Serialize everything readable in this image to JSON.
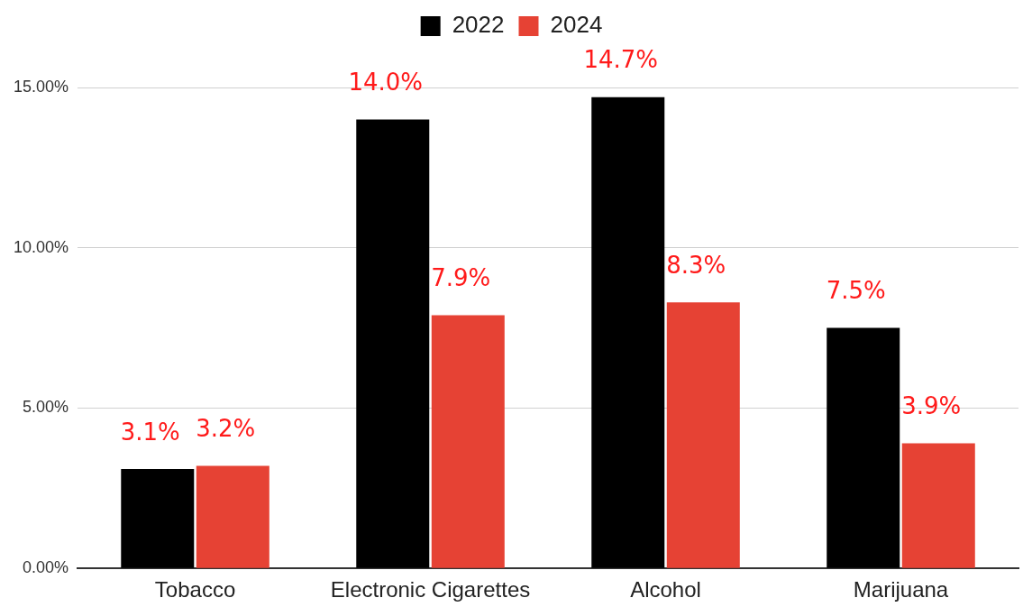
{
  "chart_data": {
    "type": "bar",
    "categories": [
      "Tobacco",
      "Electronic Cigarettes",
      "Alcohol",
      "Marijuana"
    ],
    "series": [
      {
        "name": "2022",
        "color": "#000000",
        "values": [
          3.1,
          14.0,
          14.7,
          7.5
        ],
        "value_labels": [
          "3.1%",
          "14.0%",
          "14.7%",
          "7.5%"
        ]
      },
      {
        "name": "2024",
        "color": "#e64234",
        "values": [
          3.2,
          7.9,
          8.3,
          3.9
        ],
        "value_labels": [
          "3.2%",
          "7.9%",
          "8.3%",
          "3.9%"
        ]
      }
    ],
    "ylim": [
      0,
      15
    ],
    "yticks": [
      {
        "value": 0,
        "label": "0.00%"
      },
      {
        "value": 5,
        "label": "5.00%"
      },
      {
        "value": 10,
        "label": "10.00%"
      },
      {
        "value": 15,
        "label": "15.00%"
      }
    ],
    "grid": "y",
    "legend": "top"
  }
}
